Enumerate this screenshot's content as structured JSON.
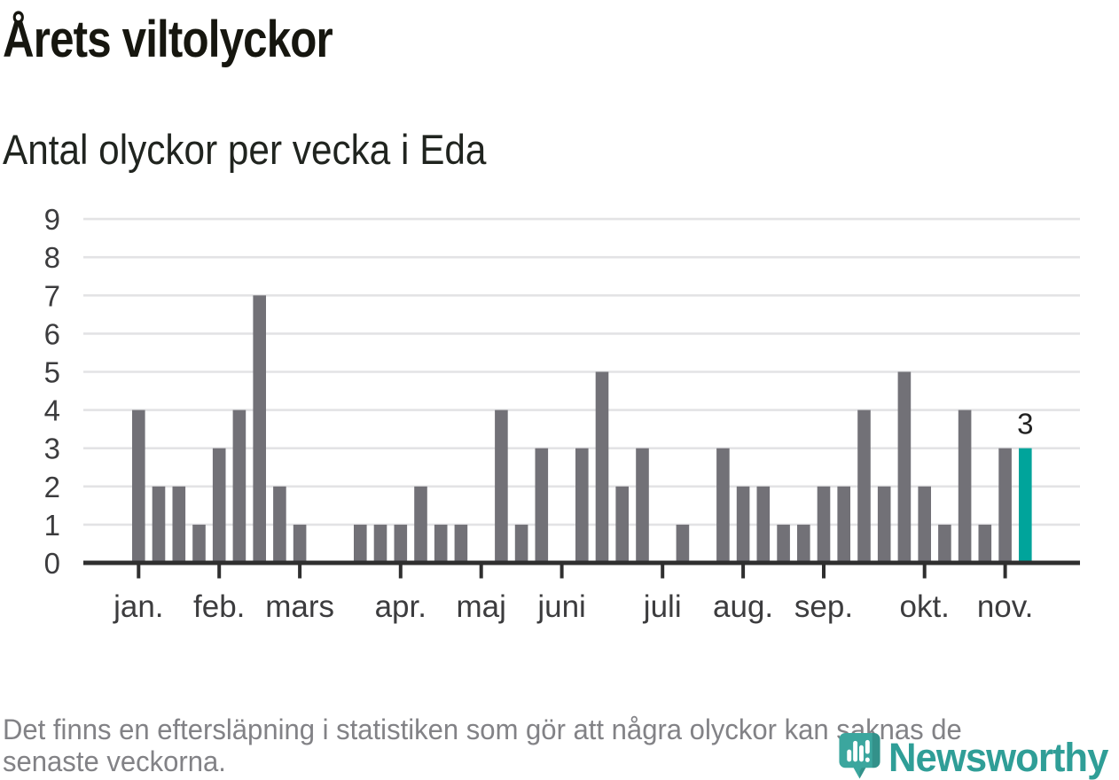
{
  "header": {
    "title": "Årets viltolyckor",
    "subtitle": "Antal olyckor per vecka i Eda"
  },
  "chart_data": {
    "type": "bar",
    "title": "Årets viltolyckor",
    "subtitle": "Antal olyckor per vecka i Eda",
    "xlabel": "",
    "ylabel": "",
    "x_unit": "vecka",
    "weeks": [
      1,
      2,
      3,
      4,
      5,
      6,
      7,
      8,
      9,
      10,
      11,
      12,
      13,
      14,
      15,
      16,
      17,
      18,
      19,
      20,
      21,
      22,
      23,
      24,
      25,
      26,
      27,
      28,
      29,
      30,
      31,
      32,
      33,
      34,
      35,
      36,
      37,
      38,
      39,
      40,
      41,
      42,
      43,
      44,
      45
    ],
    "values": [
      4,
      2,
      2,
      1,
      3,
      4,
      7,
      2,
      1,
      0,
      0,
      1,
      1,
      1,
      2,
      1,
      1,
      0,
      4,
      1,
      3,
      0,
      3,
      5,
      2,
      3,
      0,
      1,
      0,
      3,
      2,
      2,
      1,
      1,
      2,
      2,
      4,
      2,
      5,
      2,
      1,
      4,
      1,
      3,
      3
    ],
    "ylim": [
      0,
      9
    ],
    "yticks": [
      0,
      1,
      2,
      3,
      4,
      5,
      6,
      7,
      8,
      9
    ],
    "month_ticks": [
      {
        "label": "jan.",
        "week": 1
      },
      {
        "label": "feb.",
        "week": 5
      },
      {
        "label": "mars",
        "week": 9
      },
      {
        "label": "apr.",
        "week": 14
      },
      {
        "label": "maj",
        "week": 18
      },
      {
        "label": "juni",
        "week": 22
      },
      {
        "label": "juli",
        "week": 27
      },
      {
        "label": "aug.",
        "week": 31
      },
      {
        "label": "sep.",
        "week": 35
      },
      {
        "label": "okt.",
        "week": 40
      },
      {
        "label": "nov.",
        "week": 44
      }
    ],
    "highlight_last_bar": true,
    "annotation": {
      "text": "3",
      "value": 3,
      "week": 45
    },
    "grid": true,
    "legend": false,
    "colors": {
      "bar": "#727177",
      "highlight": "#00a49b",
      "grid": "#e3e3e5",
      "axis": "#2f2f2f",
      "tick_label": "#3c3c3e",
      "annotation": "#222222"
    }
  },
  "footer": {
    "lines": [
      "Det finns en eftersläpning i statistiken som gör att några olyckor kan saknas de",
      "senaste veckorna."
    ]
  },
  "branding": {
    "name": "Newsworthy",
    "color": "#2f9e97",
    "icon": "newsworthy-pin-barchart-icon"
  }
}
